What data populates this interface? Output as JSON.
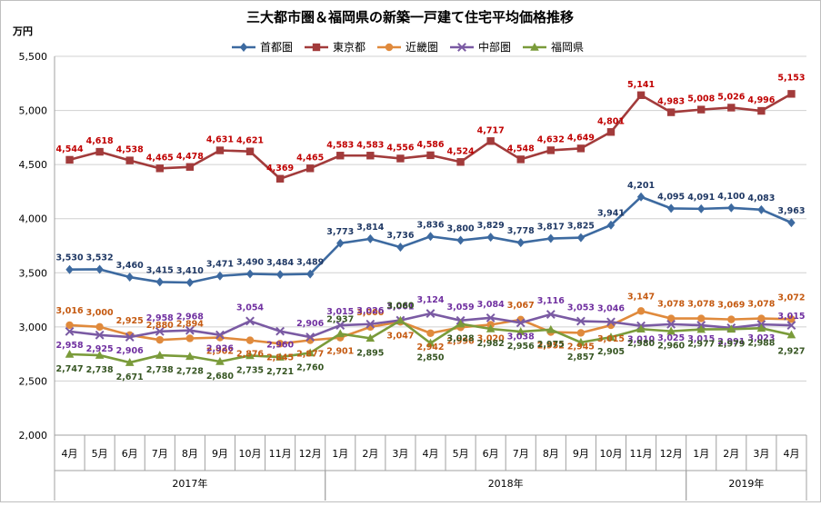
{
  "chart_data": {
    "type": "line",
    "title": "三大都市圏＆福岡県の新築一戸建て住宅平均価格推移",
    "ylabel": "万円",
    "xlabel": "",
    "ylim": [
      2000,
      5500
    ],
    "yticks": [
      "2,000",
      "2,500",
      "3,000",
      "3,500",
      "4,000",
      "4,500",
      "5,000",
      "5,500"
    ],
    "ytick_values": [
      2000,
      2500,
      3000,
      3500,
      4000,
      4500,
      5000,
      5500
    ],
    "grid": true,
    "legend_position": "top",
    "categories": [
      "4月",
      "5月",
      "6月",
      "7月",
      "8月",
      "9月",
      "10月",
      "11月",
      "12月",
      "1月",
      "2月",
      "3月",
      "4月",
      "5月",
      "6月",
      "7月",
      "8月",
      "9月",
      "10月",
      "11月",
      "12月",
      "1月",
      "2月",
      "3月",
      "4月"
    ],
    "year_groups": [
      {
        "label": "2017年",
        "start": 0,
        "count": 9
      },
      {
        "label": "2018年",
        "start": 9,
        "count": 12
      },
      {
        "label": "2019年",
        "start": 21,
        "count": 4
      }
    ],
    "series": [
      {
        "name": "首都圏",
        "color": "#3d6aa0",
        "marker": "diamond",
        "label_color": "#1f3864",
        "values": [
          3530,
          3532,
          3460,
          3415,
          3410,
          3471,
          3490,
          3484,
          3489,
          3773,
          3814,
          3736,
          3836,
          3800,
          3829,
          3778,
          3817,
          3825,
          3941,
          4201,
          4095,
          4091,
          4100,
          4083,
          3963
        ],
        "labels": [
          "3,530",
          "3,532",
          "3,460",
          "3,415",
          "3,410",
          "3,471",
          "3,490",
          "3,484",
          "3,489",
          "3,773",
          "3,814",
          "3,736",
          "3,836",
          "3,800",
          "3,829",
          "3,778",
          "3,817",
          "3,825",
          "3,941",
          "4,201",
          "4,095",
          "4,091",
          "4,100",
          "4,083",
          "3,963"
        ]
      },
      {
        "name": "東京都",
        "color": "#a23b3b",
        "marker": "square",
        "label_color": "#c00000",
        "values": [
          4544,
          4618,
          4538,
          4465,
          4478,
          4631,
          4621,
          4369,
          4465,
          4583,
          4583,
          4556,
          4586,
          4524,
          4717,
          4548,
          4632,
          4649,
          4801,
          5141,
          4983,
          5008,
          5026,
          4996,
          5153
        ],
        "labels": [
          "4,544",
          "4,618",
          "4,538",
          "4,465",
          "4,478",
          "4,631",
          "4,621",
          "4,369",
          "4,465",
          "4,583",
          "4,583",
          "4,556",
          "4,586",
          "4,524",
          "4,717",
          "4,548",
          "4,632",
          "4,649",
          "4,801",
          "5,141",
          "4,983",
          "5,008",
          "5,026",
          "4,996",
          "5,153"
        ]
      },
      {
        "name": "近畿圏",
        "color": "#e08a3c",
        "marker": "circle",
        "label_color": "#c55a11",
        "values": [
          3016,
          3000,
          2925,
          2880,
          2894,
          2902,
          2876,
          2845,
          2877,
          2901,
          3000,
          3047,
          2942,
          2996,
          3020,
          3067,
          2952,
          2945,
          3015,
          3147,
          3078,
          3078,
          3069,
          3078,
          3072
        ],
        "labels": [
          "3,016",
          "3,000",
          "2,925",
          "2,880",
          "2,894",
          "2,902",
          "2,876",
          "2,845",
          "2,877",
          "2,901",
          "3,000",
          "3,047",
          "2,942",
          "2,996",
          "3,020",
          "3,067",
          "2,952",
          "2,945",
          "3,015",
          "3,147",
          "3,078",
          "3,078",
          "3,069",
          "3,078",
          "3,072"
        ]
      },
      {
        "name": "中部圏",
        "color": "#7a5aa3",
        "marker": "x",
        "label_color": "#7030a0",
        "values": [
          2958,
          2925,
          2906,
          2958,
          2968,
          2926,
          3054,
          2960,
          2906,
          3015,
          3026,
          3061,
          3124,
          3059,
          3084,
          3038,
          3116,
          3053,
          3046,
          3010,
          3025,
          3015,
          2991,
          3023,
          3015
        ],
        "labels": [
          "2,958",
          "2,925",
          "2,906",
          "2,958",
          "2,968",
          "2,926",
          "3,054",
          "2,960",
          "2,906",
          "3,015",
          "3,026",
          "3,061",
          "3,124",
          "3,059",
          "3,084",
          "3,038",
          "3,116",
          "3,053",
          "3,046",
          "3,010",
          "3,025",
          "3,015",
          "2,991",
          "3,023",
          "3,015"
        ]
      },
      {
        "name": "福岡県",
        "color": "#7a9b3a",
        "marker": "triangle",
        "label_color": "#375623",
        "values": [
          2747,
          2738,
          2671,
          2738,
          2728,
          2680,
          2735,
          2721,
          2760,
          2937,
          2895,
          3060,
          2850,
          3028,
          2982,
          2956,
          2975,
          2857,
          2905,
          2980,
          2960,
          2977,
          2979,
          2988,
          2927
        ],
        "labels": [
          "2,747",
          "2,738",
          "2,671",
          "2,738",
          "2,728",
          "2,680",
          "2,735",
          "2,721",
          "2,760",
          "2,937",
          "2,895",
          "3,060",
          "2,850",
          "3,028",
          "2,982",
          "2,956",
          "2,975",
          "2,857",
          "2,905",
          "2,980",
          "2,960",
          "2,977",
          "2,979",
          "2,988",
          "2,927"
        ]
      }
    ]
  }
}
